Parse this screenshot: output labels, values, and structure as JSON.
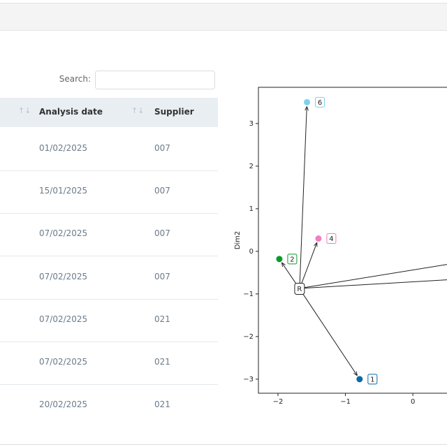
{
  "search_label": "Search:",
  "table": {
    "columns": [
      "Analysis date",
      "Supplier"
    ],
    "rows": [
      [
        "01/02/2025",
        "007"
      ],
      [
        "15/01/2025",
        "007"
      ],
      [
        "07/02/2025",
        "007"
      ],
      [
        "07/02/2025",
        "007"
      ],
      [
        "07/02/2025",
        "021"
      ],
      [
        "07/02/2025",
        "021"
      ],
      [
        "20/02/2025",
        "021"
      ]
    ]
  },
  "chart_data": {
    "type": "scatter",
    "ylabel": "Dim2",
    "xlim": [
      -2.29,
      1.2
    ],
    "ylim": [
      -3.33,
      3.85
    ],
    "xticks": [
      {
        "value": -2,
        "label": "−2"
      },
      {
        "value": -1,
        "label": "−1"
      },
      0
    ],
    "yticks": [
      {
        "value": -3,
        "label": "−3"
      },
      {
        "value": -2,
        "label": "−2"
      },
      {
        "value": -1,
        "label": "−1"
      },
      0,
      1,
      2,
      3
    ],
    "root": {
      "label": "R",
      "x": -1.68,
      "y": -0.88
    },
    "points": [
      {
        "label": "6",
        "x": -1.57,
        "y": 3.5,
        "color": "#7fd0ec"
      },
      {
        "label": "4",
        "x": -1.4,
        "y": 0.3,
        "color": "#f27fbf"
      },
      {
        "label": "2",
        "x": -1.98,
        "y": -0.18,
        "color": "#0a9a2c"
      },
      {
        "label": "1",
        "x": -0.79,
        "y": -3.0,
        "color": "#0a6aa8"
      }
    ]
  }
}
